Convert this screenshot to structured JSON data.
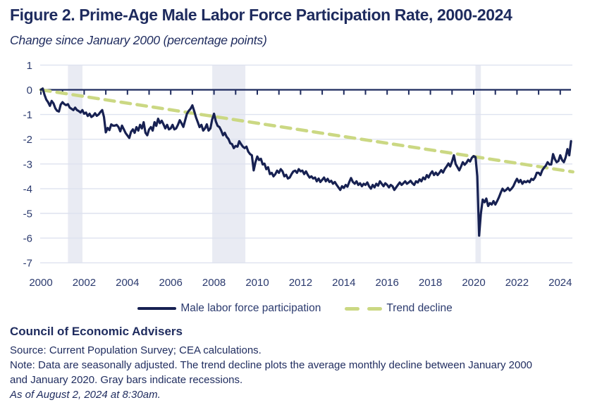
{
  "title": "Figure 2. Prime-Age Male Labor Force Participation Rate, 2000-2024",
  "subtitle": "Change since January 2000 (percentage points)",
  "legend": {
    "series1": "Male labor force participation",
    "series2": "Trend decline"
  },
  "footer": {
    "org": "Council of Economic Advisers",
    "source": "Source: Current Population Survey; CEA calculations.",
    "note_line1": "Note: Data are seasonally adjusted. The trend decline plots the average monthly decline between January 2000",
    "note_line2": "and January 2020. Gray bars indicate recessions.",
    "asof": "As of August 2, 2024 at 8:30am."
  },
  "colors": {
    "navy_text": "#1e2b5e",
    "line": "#172152",
    "trend": "#cbd883",
    "recession": "#e9ebf3",
    "grid": "#dee2ef",
    "axis": "#1e2b5e",
    "axis_text": "#2b3a6e"
  },
  "chart_data": {
    "type": "line",
    "title": "Figure 2. Prime-Age Male Labor Force Participation Rate, 2000-2024",
    "ylabel": "Change since January 2000 (percentage points)",
    "ylim": [
      -7,
      1
    ],
    "xlim": [
      2000,
      2024.75
    ],
    "grid": true,
    "legend_position": "bottom",
    "x_ticks": [
      "2000",
      "2002",
      "2004",
      "2006",
      "2008",
      "2010",
      "2012",
      "2014",
      "2016",
      "2018",
      "2020",
      "2022",
      "2024"
    ],
    "y_ticks": [
      "1",
      "0",
      "-1",
      "-2",
      "-3",
      "-4",
      "-5",
      "-6",
      "-7"
    ],
    "recessions": [
      {
        "start": 2001.25,
        "end": 2001.92
      },
      {
        "start": 2007.92,
        "end": 2009.45
      },
      {
        "start": 2020.08,
        "end": 2020.33
      }
    ],
    "trend": {
      "name": "Trend decline",
      "start": {
        "x": 2000.0,
        "y": 0.0
      },
      "end": {
        "x": 2024.58,
        "y": -3.32
      }
    },
    "series": [
      {
        "name": "Male labor force participation",
        "frequency": "monthly",
        "start": "2000-01",
        "end": "2024-07",
        "values": [
          0.0,
          0.05,
          -0.2,
          -0.4,
          -0.5,
          -0.65,
          -0.45,
          -0.55,
          -0.75,
          -0.85,
          -0.88,
          -0.6,
          -0.5,
          -0.58,
          -0.62,
          -0.58,
          -0.72,
          -0.77,
          -0.82,
          -0.72,
          -0.82,
          -0.86,
          -0.92,
          -0.82,
          -0.97,
          -0.92,
          -1.06,
          -0.97,
          -1.1,
          -1.05,
          -0.95,
          -1.05,
          -1.0,
          -0.9,
          -0.82,
          -1.1,
          -1.72,
          -1.54,
          -1.63,
          -1.4,
          -1.45,
          -1.45,
          -1.42,
          -1.5,
          -1.68,
          -1.45,
          -1.6,
          -1.75,
          -1.85,
          -1.95,
          -1.7,
          -1.6,
          -1.74,
          -1.51,
          -1.65,
          -1.42,
          -1.56,
          -1.31,
          -1.74,
          -1.84,
          -1.6,
          -1.51,
          -1.65,
          -1.31,
          -1.46,
          -1.17,
          -1.35,
          -1.25,
          -1.4,
          -1.56,
          -1.42,
          -1.6,
          -1.56,
          -1.42,
          -1.6,
          -1.56,
          -1.42,
          -1.23,
          -1.35,
          -1.5,
          -1.23,
          -0.97,
          -0.85,
          -0.77,
          -0.63,
          -0.86,
          -1.11,
          -1.31,
          -1.51,
          -1.42,
          -1.65,
          -1.56,
          -1.4,
          -1.65,
          -1.56,
          -1.2,
          -0.97,
          -1.28,
          -1.46,
          -1.51,
          -1.65,
          -1.84,
          -1.74,
          -1.9,
          -1.99,
          -2.16,
          -2.2,
          -2.36,
          -2.27,
          -2.3,
          -2.08,
          -2.2,
          -2.3,
          -2.36,
          -2.3,
          -2.5,
          -2.6,
          -2.65,
          -3.26,
          -2.93,
          -2.7,
          -2.84,
          -2.79,
          -3.02,
          -2.99,
          -3.21,
          -3.13,
          -3.41,
          -3.36,
          -3.5,
          -3.41,
          -3.27,
          -3.36,
          -3.21,
          -3.3,
          -3.5,
          -3.44,
          -3.59,
          -3.55,
          -3.41,
          -3.3,
          -3.27,
          -3.36,
          -3.21,
          -3.3,
          -3.27,
          -3.41,
          -3.3,
          -3.44,
          -3.55,
          -3.5,
          -3.59,
          -3.55,
          -3.7,
          -3.59,
          -3.73,
          -3.64,
          -3.55,
          -3.7,
          -3.6,
          -3.73,
          -3.68,
          -3.8,
          -3.73,
          -3.85,
          -3.95,
          -4.05,
          -3.9,
          -3.97,
          -3.85,
          -3.92,
          -3.73,
          -3.57,
          -3.73,
          -3.8,
          -3.7,
          -3.85,
          -3.78,
          -3.9,
          -3.8,
          -3.85,
          -3.75,
          -3.9,
          -4.0,
          -3.85,
          -3.95,
          -3.8,
          -3.88,
          -3.7,
          -3.8,
          -3.9,
          -3.78,
          -3.85,
          -3.95,
          -3.85,
          -3.9,
          -4.05,
          -3.95,
          -3.85,
          -3.75,
          -3.85,
          -3.78,
          -3.7,
          -3.8,
          -3.75,
          -3.68,
          -3.78,
          -3.85,
          -3.7,
          -3.75,
          -3.62,
          -3.7,
          -3.55,
          -3.62,
          -3.45,
          -3.55,
          -3.4,
          -3.3,
          -3.45,
          -3.35,
          -3.45,
          -3.36,
          -3.25,
          -3.35,
          -3.2,
          -3.1,
          -2.98,
          -3.1,
          -2.9,
          -2.65,
          -3.0,
          -3.13,
          -3.26,
          -3.1,
          -2.93,
          -3.03,
          -2.95,
          -2.83,
          -2.9,
          -2.75,
          -2.68,
          -2.72,
          -3.5,
          -5.9,
          -5.0,
          -4.44,
          -4.55,
          -4.4,
          -4.7,
          -4.58,
          -4.64,
          -4.5,
          -4.64,
          -4.5,
          -4.35,
          -4.16,
          -4.0,
          -4.1,
          -4.05,
          -3.97,
          -4.07,
          -4.0,
          -3.9,
          -3.74,
          -3.6,
          -3.74,
          -3.65,
          -3.8,
          -3.7,
          -3.74,
          -3.68,
          -3.74,
          -3.6,
          -3.65,
          -3.55,
          -3.36,
          -3.36,
          -3.45,
          -3.26,
          -3.15,
          -3.07,
          -2.93,
          -3.02,
          -3.02,
          -2.6,
          -2.8,
          -2.93,
          -2.88,
          -2.65,
          -2.84,
          -2.93,
          -2.73,
          -2.4,
          -2.65,
          -2.08
        ]
      }
    ]
  }
}
